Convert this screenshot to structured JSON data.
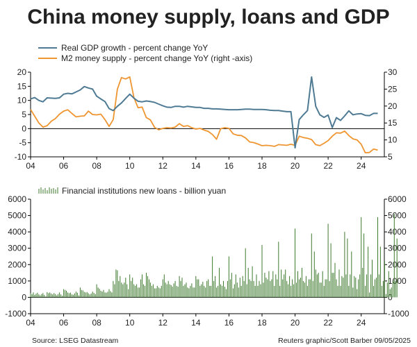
{
  "title": "China money supply, loans and GDP",
  "source": "Source: LSEG Datastream",
  "credit": "Reuters graphic/Scott Barber 09/05/2025",
  "colors": {
    "gdp": "#4e7a93",
    "m2": "#ef9530",
    "loans": "#3d7a2c",
    "axis": "#000000"
  },
  "chart_data": [
    {
      "type": "line",
      "legend": [
        "Real GDP growth - percent change YoY",
        "M2 money supply - percent change YoY (right -axis)"
      ],
      "legend_position": "top-left",
      "x_ticks": [
        "04",
        "06",
        "08",
        "10",
        "12",
        "14",
        "16",
        "18",
        "20",
        "22",
        "24"
      ],
      "x_range": [
        2004,
        2025.4
      ],
      "y_left": {
        "range": [
          -10,
          20
        ],
        "ticks": [
          "20",
          "15",
          "10",
          "5",
          "0",
          "-5",
          "-10"
        ]
      },
      "y_right": {
        "range": [
          5,
          30
        ],
        "ticks": [
          "30",
          "25",
          "20",
          "15",
          "10",
          "5"
        ]
      },
      "zero_line": 0,
      "series": [
        {
          "name": "Real GDP growth - percent change YoY",
          "axis": "left",
          "x": [
            2004.0,
            2004.25,
            2004.5,
            2004.75,
            2005.0,
            2005.25,
            2005.5,
            2005.75,
            2006.0,
            2006.25,
            2006.5,
            2006.75,
            2007.0,
            2007.25,
            2007.5,
            2007.75,
            2008.0,
            2008.25,
            2008.5,
            2008.75,
            2009.0,
            2009.25,
            2009.5,
            2009.75,
            2010.0,
            2010.25,
            2010.5,
            2010.75,
            2011.0,
            2011.25,
            2011.5,
            2011.75,
            2012.0,
            2012.25,
            2012.5,
            2012.75,
            2013.0,
            2013.25,
            2013.5,
            2013.75,
            2014.0,
            2014.25,
            2014.5,
            2014.75,
            2015.0,
            2015.25,
            2015.5,
            2015.75,
            2016.0,
            2016.25,
            2016.5,
            2016.75,
            2017.0,
            2017.25,
            2017.5,
            2017.75,
            2018.0,
            2018.25,
            2018.5,
            2018.75,
            2019.0,
            2019.25,
            2019.5,
            2019.75,
            2020.0,
            2020.25,
            2020.5,
            2020.75,
            2021.0,
            2021.25,
            2021.5,
            2021.75,
            2022.0,
            2022.25,
            2022.5,
            2022.75,
            2023.0,
            2023.25,
            2023.5,
            2023.75,
            2024.0,
            2024.25,
            2024.5,
            2024.75,
            2025.0
          ],
          "values": [
            10.5,
            11.0,
            10.0,
            9.5,
            10.9,
            10.8,
            10.7,
            10.9,
            12.2,
            12.5,
            12.3,
            13.0,
            13.7,
            14.9,
            14.4,
            14.0,
            11.5,
            10.5,
            9.6,
            7.1,
            6.4,
            7.9,
            9.1,
            10.7,
            12.2,
            10.8,
            9.7,
            9.5,
            9.8,
            9.6,
            9.3,
            8.7,
            8.1,
            7.6,
            7.5,
            7.9,
            7.9,
            7.6,
            7.9,
            7.7,
            7.5,
            7.5,
            7.2,
            7.2,
            7.0,
            7.0,
            6.9,
            6.8,
            6.7,
            6.7,
            6.7,
            6.8,
            6.9,
            6.9,
            6.8,
            6.8,
            6.8,
            6.7,
            6.5,
            6.4,
            6.4,
            6.2,
            6.0,
            6.0,
            -6.8,
            3.2,
            4.9,
            6.4,
            18.3,
            7.9,
            4.9,
            4.0,
            4.8,
            0.4,
            3.9,
            2.9,
            4.5,
            6.3,
            4.9,
            5.2,
            5.3,
            4.7,
            4.6,
            5.4,
            5.4
          ]
        },
        {
          "name": "M2 money supply - percent change YoY (right -axis)",
          "axis": "right",
          "x": [
            2004.0,
            2004.25,
            2004.5,
            2004.75,
            2005.0,
            2005.25,
            2005.5,
            2005.75,
            2006.0,
            2006.25,
            2006.5,
            2006.75,
            2007.0,
            2007.25,
            2007.5,
            2007.75,
            2008.0,
            2008.25,
            2008.5,
            2008.75,
            2009.0,
            2009.25,
            2009.5,
            2009.75,
            2010.0,
            2010.25,
            2010.5,
            2010.75,
            2011.0,
            2011.25,
            2011.5,
            2011.75,
            2012.0,
            2012.25,
            2012.5,
            2012.75,
            2013.0,
            2013.25,
            2013.5,
            2013.75,
            2014.0,
            2014.25,
            2014.5,
            2014.75,
            2015.0,
            2015.25,
            2015.5,
            2015.75,
            2016.0,
            2016.25,
            2016.5,
            2016.75,
            2017.0,
            2017.25,
            2017.5,
            2017.75,
            2018.0,
            2018.25,
            2018.5,
            2018.75,
            2019.0,
            2019.25,
            2019.5,
            2019.75,
            2020.0,
            2020.25,
            2020.5,
            2020.75,
            2021.0,
            2021.25,
            2021.5,
            2021.75,
            2022.0,
            2022.25,
            2022.5,
            2022.75,
            2023.0,
            2023.25,
            2023.5,
            2023.75,
            2024.0,
            2024.25,
            2024.5,
            2024.75,
            2025.0
          ],
          "values": [
            19.0,
            17.0,
            15.0,
            13.8,
            14.2,
            15.5,
            16.3,
            17.6,
            18.5,
            18.9,
            17.8,
            16.8,
            17.0,
            17.1,
            18.5,
            17.5,
            17.4,
            17.6,
            16.0,
            14.0,
            16.0,
            25.0,
            28.4,
            28.0,
            28.6,
            22.5,
            19.5,
            19.7,
            16.6,
            15.9,
            13.7,
            13.0,
            13.4,
            13.6,
            13.5,
            13.8,
            14.8,
            14.0,
            14.2,
            13.6,
            13.2,
            13.4,
            12.9,
            12.5,
            11.6,
            10.2,
            13.3,
            13.6,
            13.4,
            11.8,
            11.4,
            11.3,
            10.6,
            9.4,
            9.2,
            8.8,
            8.3,
            8.4,
            8.3,
            8.1,
            8.6,
            8.5,
            8.4,
            8.7,
            8.4,
            11.1,
            10.7,
            10.5,
            10.1,
            8.6,
            8.3,
            9.0,
            9.8,
            11.1,
            12.1,
            12.0,
            12.6,
            11.3,
            10.3,
            10.0,
            8.7,
            6.2,
            6.3,
            7.3,
            7.0
          ]
        }
      ]
    },
    {
      "type": "bar",
      "legend": [
        "Financial institutions new loans - billion yuan"
      ],
      "legend_position": "top-left",
      "x_ticks": [
        "04",
        "06",
        "08",
        "10",
        "12",
        "14",
        "16",
        "18",
        "20",
        "22",
        "24"
      ],
      "x_range": [
        2004,
        2025.4
      ],
      "y_left": {
        "range": [
          -1000,
          6000
        ],
        "ticks": [
          "6000",
          "5000",
          "4000",
          "3000",
          "2000",
          "1000",
          "0",
          "-1000"
        ]
      },
      "y_right": {
        "range": [
          -1000,
          6000
        ],
        "ticks": [
          "6000",
          "5000",
          "4000",
          "3000",
          "2000",
          "1000",
          "0",
          "-1000"
        ]
      },
      "series": [
        {
          "name": "Financial institutions new loans - billion yuan",
          "x_start": 2004.0,
          "x_step": 0.08333,
          "values": [
            250,
            200,
            300,
            150,
            220,
            280,
            180,
            120,
            200,
            260,
            150,
            50,
            320,
            250,
            300,
            230,
            180,
            260,
            200,
            120,
            200,
            300,
            180,
            100,
            500,
            450,
            400,
            300,
            250,
            280,
            180,
            160,
            240,
            350,
            280,
            120,
            600,
            450,
            420,
            330,
            300,
            320,
            250,
            180,
            230,
            350,
            270,
            200,
            800,
            600,
            520,
            400,
            350,
            450,
            300,
            280,
            340,
            500,
            380,
            300,
            1000,
            800,
            1700,
            1650,
            1000,
            1300,
            900,
            800,
            900,
            1200,
            800,
            500,
            1400,
            1000,
            1200,
            800,
            700,
            800,
            600,
            600,
            1100,
            1400,
            800,
            700,
            1500,
            1300,
            1100,
            900,
            700,
            800,
            550,
            550,
            700,
            600,
            550,
            700,
            1100,
            1400,
            900,
            800,
            1000,
            800,
            750,
            650,
            850,
            1000,
            700,
            650,
            1300,
            1000,
            1200,
            700,
            800,
            900,
            600,
            550,
            700,
            850,
            600,
            600,
            1300,
            1100,
            1100,
            700,
            800,
            950,
            700,
            600,
            1000,
            1100,
            700,
            700,
            2500,
            1000,
            1300,
            600,
            700,
            1800,
            800,
            700,
            1000,
            650,
            500,
            1000,
            2500,
            1100,
            1500,
            550,
            800,
            1400,
            900,
            600,
            1200,
            700,
            1300,
            1000,
            3000,
            800,
            1800,
            1100,
            1000,
            1900,
            1000,
            700,
            1400,
            700,
            1000,
            800,
            3200,
            900,
            1500,
            1200,
            1100,
            1600,
            1000,
            1100,
            1600,
            700,
            1400,
            1100,
            3400,
            700,
            1700,
            1100,
            1400,
            1700,
            1000,
            800,
            1300,
            700,
            1100,
            800,
            4200,
            900,
            1600,
            1100,
            1200,
            1800,
            1000,
            900,
            1300,
            700,
            1100,
            1100,
            3900,
            1000,
            2800,
            1700,
            1400,
            1500,
            900,
            900,
            1600,
            700,
            1100,
            1100,
            4500,
            1000,
            3300,
            1500,
            1500,
            2100,
            1100,
            700,
            1700,
            700,
            1300,
            1200,
            4000,
            1400,
            3600,
            700,
            1400,
            2800,
            600,
            1300,
            1200,
            500,
            1100,
            1400,
            4900,
            1800,
            3900,
            700,
            1400,
            3100,
            300,
            1400,
            2300,
            700,
            1100,
            1200,
            4900,
            1400,
            3100,
            700,
            1000,
            2200,
            200,
            900,
            1600,
            500,
            600,
            1000,
            5100,
            1000,
            3600
          ]
        }
      ]
    }
  ]
}
